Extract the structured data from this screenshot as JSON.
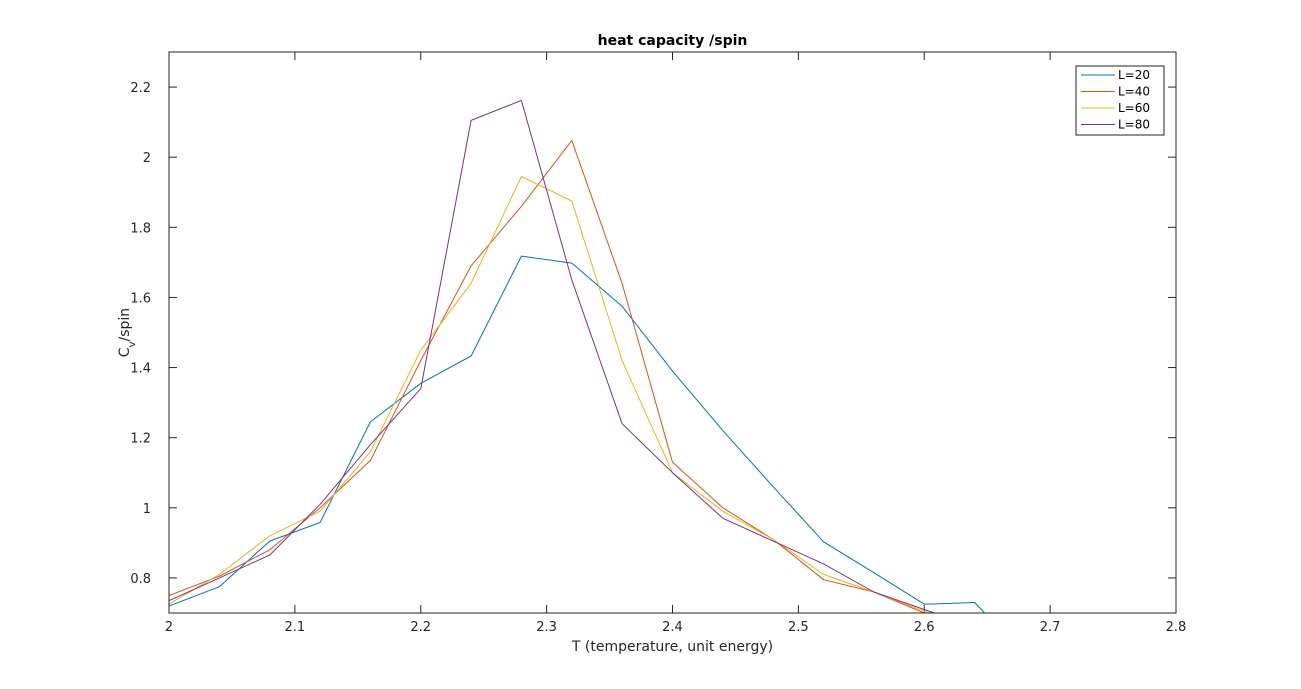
{
  "chart_data": {
    "type": "line",
    "title": "heat capacity /spin",
    "xlabel": "T (temperature, unit energy)",
    "ylabel": {
      "main": "C",
      "sub": "v",
      "suffix": "/spin"
    },
    "xlim": [
      2,
      2.8
    ],
    "ylim": [
      0.7,
      2.3
    ],
    "xticks": [
      2,
      2.1,
      2.2,
      2.3,
      2.4,
      2.5,
      2.6,
      2.7,
      2.8
    ],
    "xtick_labels": [
      "2",
      "2.1",
      "2.2",
      "2.3",
      "2.4",
      "2.5",
      "2.6",
      "2.7",
      "2.8"
    ],
    "yticks": [
      0.8,
      1,
      1.2,
      1.4,
      1.6,
      1.8,
      2,
      2.2
    ],
    "ytick_labels": [
      "0.8",
      "1",
      "1.2",
      "1.4",
      "1.6",
      "1.8",
      "2",
      "2.2"
    ],
    "grid": false,
    "legend_position": "top-right",
    "series": [
      {
        "name": "L=20",
        "color": "#0072bd",
        "points": [
          [
            2.0,
            0.72
          ],
          [
            2.04,
            0.775
          ],
          [
            2.08,
            0.905
          ],
          [
            2.12,
            0.958
          ],
          [
            2.16,
            1.245
          ],
          [
            2.2,
            1.355
          ],
          [
            2.24,
            1.433
          ],
          [
            2.28,
            1.718
          ],
          [
            2.32,
            1.698
          ],
          [
            2.36,
            1.575
          ],
          [
            2.4,
            1.39
          ],
          [
            2.44,
            1.22
          ],
          [
            2.48,
            1.06
          ],
          [
            2.52,
            0.903
          ],
          [
            2.56,
            0.815
          ],
          [
            2.6,
            0.725
          ],
          [
            2.64,
            0.73
          ],
          [
            2.68,
            0.58
          ]
        ]
      },
      {
        "name": "L=40",
        "color": "#d95319",
        "points": [
          [
            2.0,
            0.75
          ],
          [
            2.04,
            0.805
          ],
          [
            2.08,
            0.88
          ],
          [
            2.12,
            1.0
          ],
          [
            2.16,
            1.135
          ],
          [
            2.2,
            1.42
          ],
          [
            2.24,
            1.69
          ],
          [
            2.28,
            1.86
          ],
          [
            2.32,
            2.048
          ],
          [
            2.36,
            1.64
          ],
          [
            2.4,
            1.13
          ],
          [
            2.44,
            1.0
          ],
          [
            2.48,
            0.91
          ],
          [
            2.52,
            0.795
          ],
          [
            2.56,
            0.76
          ],
          [
            2.6,
            0.7
          ],
          [
            2.64,
            0.66
          ]
        ]
      },
      {
        "name": "L=60",
        "color": "#edb120",
        "points": [
          [
            2.0,
            0.725
          ],
          [
            2.04,
            0.81
          ],
          [
            2.08,
            0.92
          ],
          [
            2.12,
            0.99
          ],
          [
            2.16,
            1.16
          ],
          [
            2.2,
            1.45
          ],
          [
            2.24,
            1.64
          ],
          [
            2.28,
            1.945
          ],
          [
            2.32,
            1.875
          ],
          [
            2.36,
            1.42
          ],
          [
            2.4,
            1.1
          ],
          [
            2.44,
            0.99
          ],
          [
            2.48,
            0.91
          ],
          [
            2.52,
            0.81
          ],
          [
            2.56,
            0.76
          ],
          [
            2.6,
            0.705
          ],
          [
            2.64,
            0.66
          ]
        ]
      },
      {
        "name": "L=80",
        "color": "#7e2f8e",
        "points": [
          [
            2.0,
            0.735
          ],
          [
            2.04,
            0.8
          ],
          [
            2.08,
            0.865
          ],
          [
            2.12,
            1.01
          ],
          [
            2.16,
            1.18
          ],
          [
            2.2,
            1.34
          ],
          [
            2.24,
            2.105
          ],
          [
            2.28,
            2.162
          ],
          [
            2.32,
            1.65
          ],
          [
            2.36,
            1.24
          ],
          [
            2.4,
            1.1
          ],
          [
            2.44,
            0.97
          ],
          [
            2.48,
            0.905
          ],
          [
            2.52,
            0.84
          ],
          [
            2.56,
            0.76
          ],
          [
            2.6,
            0.71
          ],
          [
            2.64,
            0.66
          ]
        ]
      }
    ]
  }
}
